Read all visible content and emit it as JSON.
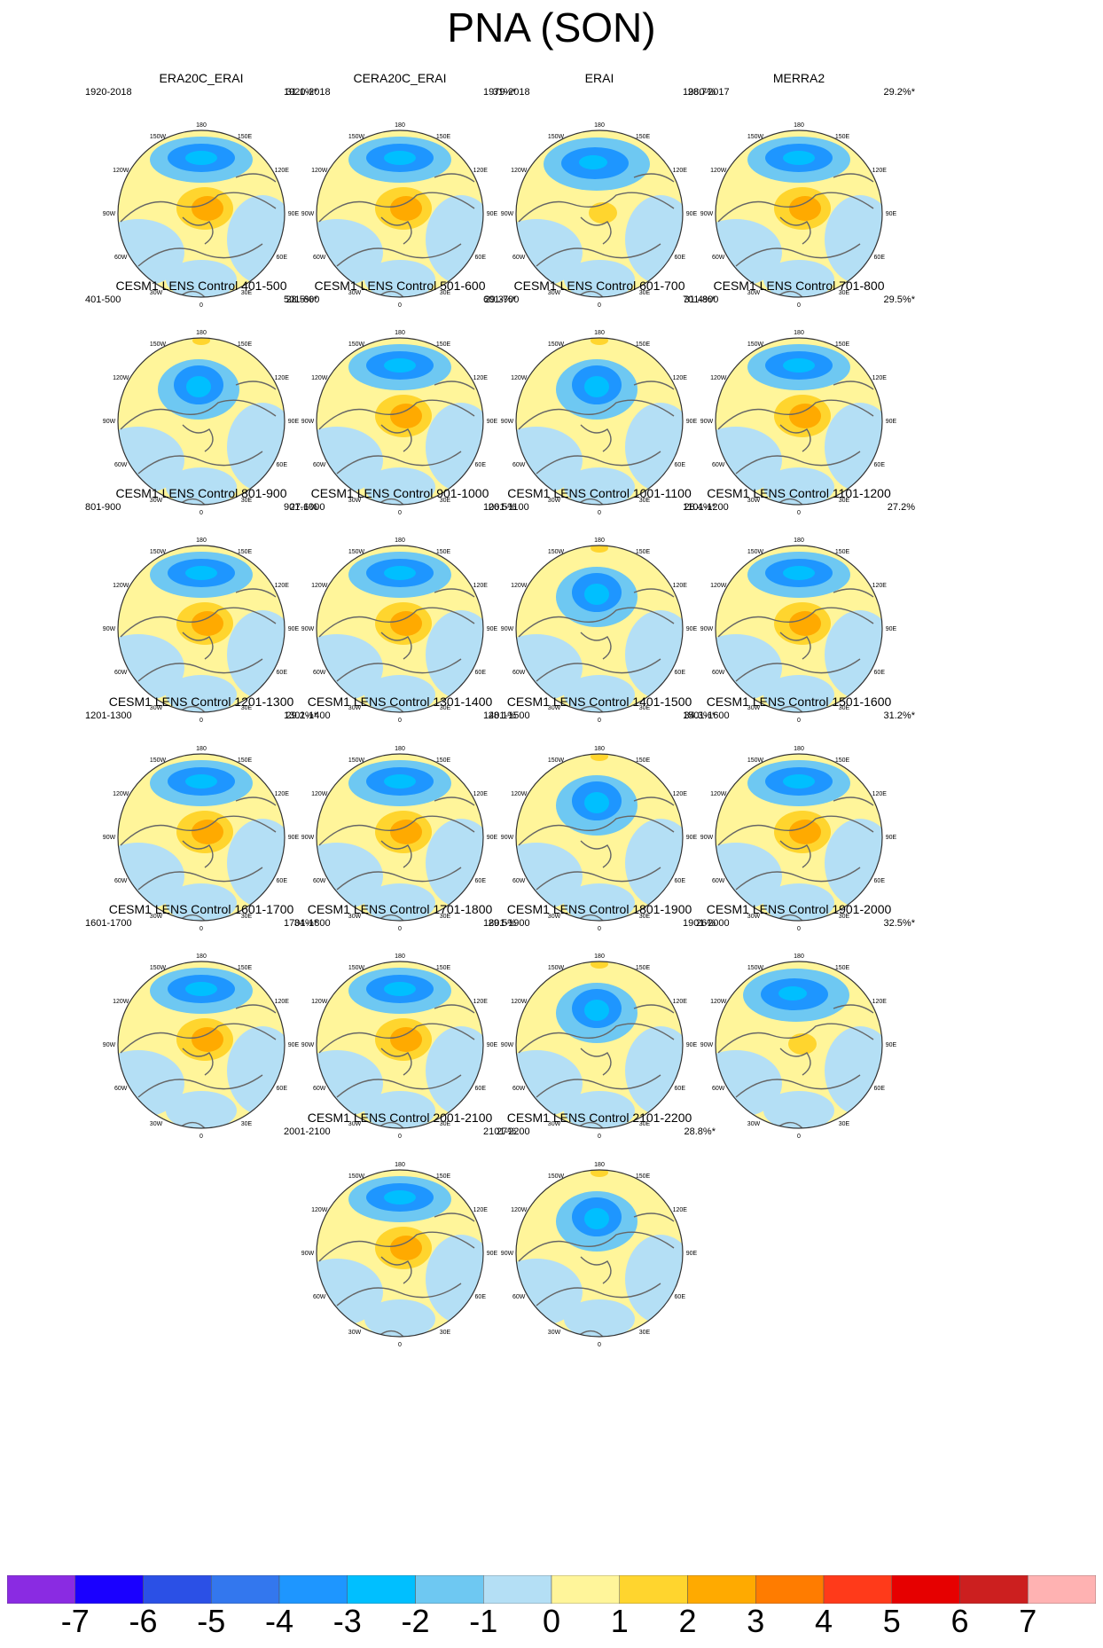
{
  "title": "PNA (SON)",
  "grid_labels": {
    "lon_top": "180",
    "lon_150w": "150W",
    "lon_150e": "150E",
    "lon_120w": "120W",
    "lon_120e": "120E",
    "lon_90w": "90W",
    "lon_90e": "90E",
    "lon_60w": "60W",
    "lon_60e": "60E",
    "lon_30w": "30W",
    "lon_30e": "30E",
    "lon_bottom": "0"
  },
  "panels": [
    {
      "title": "ERA20C_ERAI",
      "years": "1920-2018",
      "percent": "31.1%*",
      "pattern": "A"
    },
    {
      "title": "CERA20C_ERAI",
      "years": "1920-2018",
      "percent": "31%*",
      "pattern": "A"
    },
    {
      "title": "ERAI",
      "years": "1979-2018",
      "percent": "28.7%",
      "pattern": "C"
    },
    {
      "title": "MERRA2",
      "years": "1980-2017",
      "percent": "29.2%*",
      "pattern": "A"
    },
    {
      "title": "CESM1 LENS Control 401-500",
      "years": "401-500",
      "percent": "28.5%*",
      "pattern": "B"
    },
    {
      "title": "CESM1 LENS Control 501-600",
      "years": "501-600",
      "percent": "29.3%*",
      "pattern": "A"
    },
    {
      "title": "CESM1 LENS Control 601-700",
      "years": "601-700",
      "percent": "31.4%*",
      "pattern": "B"
    },
    {
      "title": "CESM1 LENS Control 701-800",
      "years": "701-800",
      "percent": "29.5%*",
      "pattern": "A"
    },
    {
      "title": "CESM1 LENS Control 801-900",
      "years": "801-900",
      "percent": "27.6%",
      "pattern": "A"
    },
    {
      "title": "CESM1 LENS Control 901-1000",
      "years": "901-1000",
      "percent": "26.5%",
      "pattern": "A"
    },
    {
      "title": "CESM1 LENS Control 1001-1100",
      "years": "1001-1100",
      "percent": "28.4%*",
      "pattern": "B"
    },
    {
      "title": "CESM1 LENS Control 1101-1200",
      "years": "1101-1200",
      "percent": "27.2%",
      "pattern": "A"
    },
    {
      "title": "CESM1 LENS Control 1201-1300",
      "years": "1201-1300",
      "percent": "29.2%*",
      "pattern": "A"
    },
    {
      "title": "CESM1 LENS Control 1301-1400",
      "years": "1301-1400",
      "percent": "28.1%",
      "pattern": "A"
    },
    {
      "title": "CESM1 LENS Control 1401-1500",
      "years": "1401-1500",
      "percent": "34.3%*",
      "pattern": "B"
    },
    {
      "title": "CESM1 LENS Control 1501-1600",
      "years": "1501-1600",
      "percent": "31.2%*",
      "pattern": "A"
    },
    {
      "title": "CESM1 LENS Control 1601-1700",
      "years": "1601-1700",
      "percent": "34%*",
      "pattern": "A"
    },
    {
      "title": "CESM1 LENS Control 1701-1800",
      "years": "1701-1800",
      "percent": "29.5%",
      "pattern": "A"
    },
    {
      "title": "CESM1 LENS Control 1801-1900",
      "years": "1801-1900",
      "percent": "26%",
      "pattern": "B"
    },
    {
      "title": "CESM1 LENS Control 1901-2000",
      "years": "1901-2000",
      "percent": "32.5%*",
      "pattern": "C"
    },
    {
      "title": "CESM1 LENS Control 2001-2100",
      "years": "2001-2100",
      "percent": "27%",
      "pattern": "A"
    },
    {
      "title": "CESM1 LENS Control 2101-2200",
      "years": "2101-2200",
      "percent": "28.8%*",
      "pattern": "B"
    }
  ],
  "colorbar": {
    "colors": [
      "#8a2be2",
      "#1a00ff",
      "#2b50e6",
      "#3377ee",
      "#1e96ff",
      "#00bfff",
      "#6ec8f2",
      "#b4dff5",
      "#fff59a",
      "#ffd52e",
      "#ffaa00",
      "#ff7c00",
      "#ff3a1a",
      "#e60000",
      "#cc1f1f",
      "#ffb2b2"
    ],
    "labels": [
      "-7",
      "-6",
      "-5",
      "-4",
      "-3",
      "-2",
      "-1",
      "0",
      "1",
      "2",
      "3",
      "4",
      "5",
      "6",
      "7"
    ]
  }
}
